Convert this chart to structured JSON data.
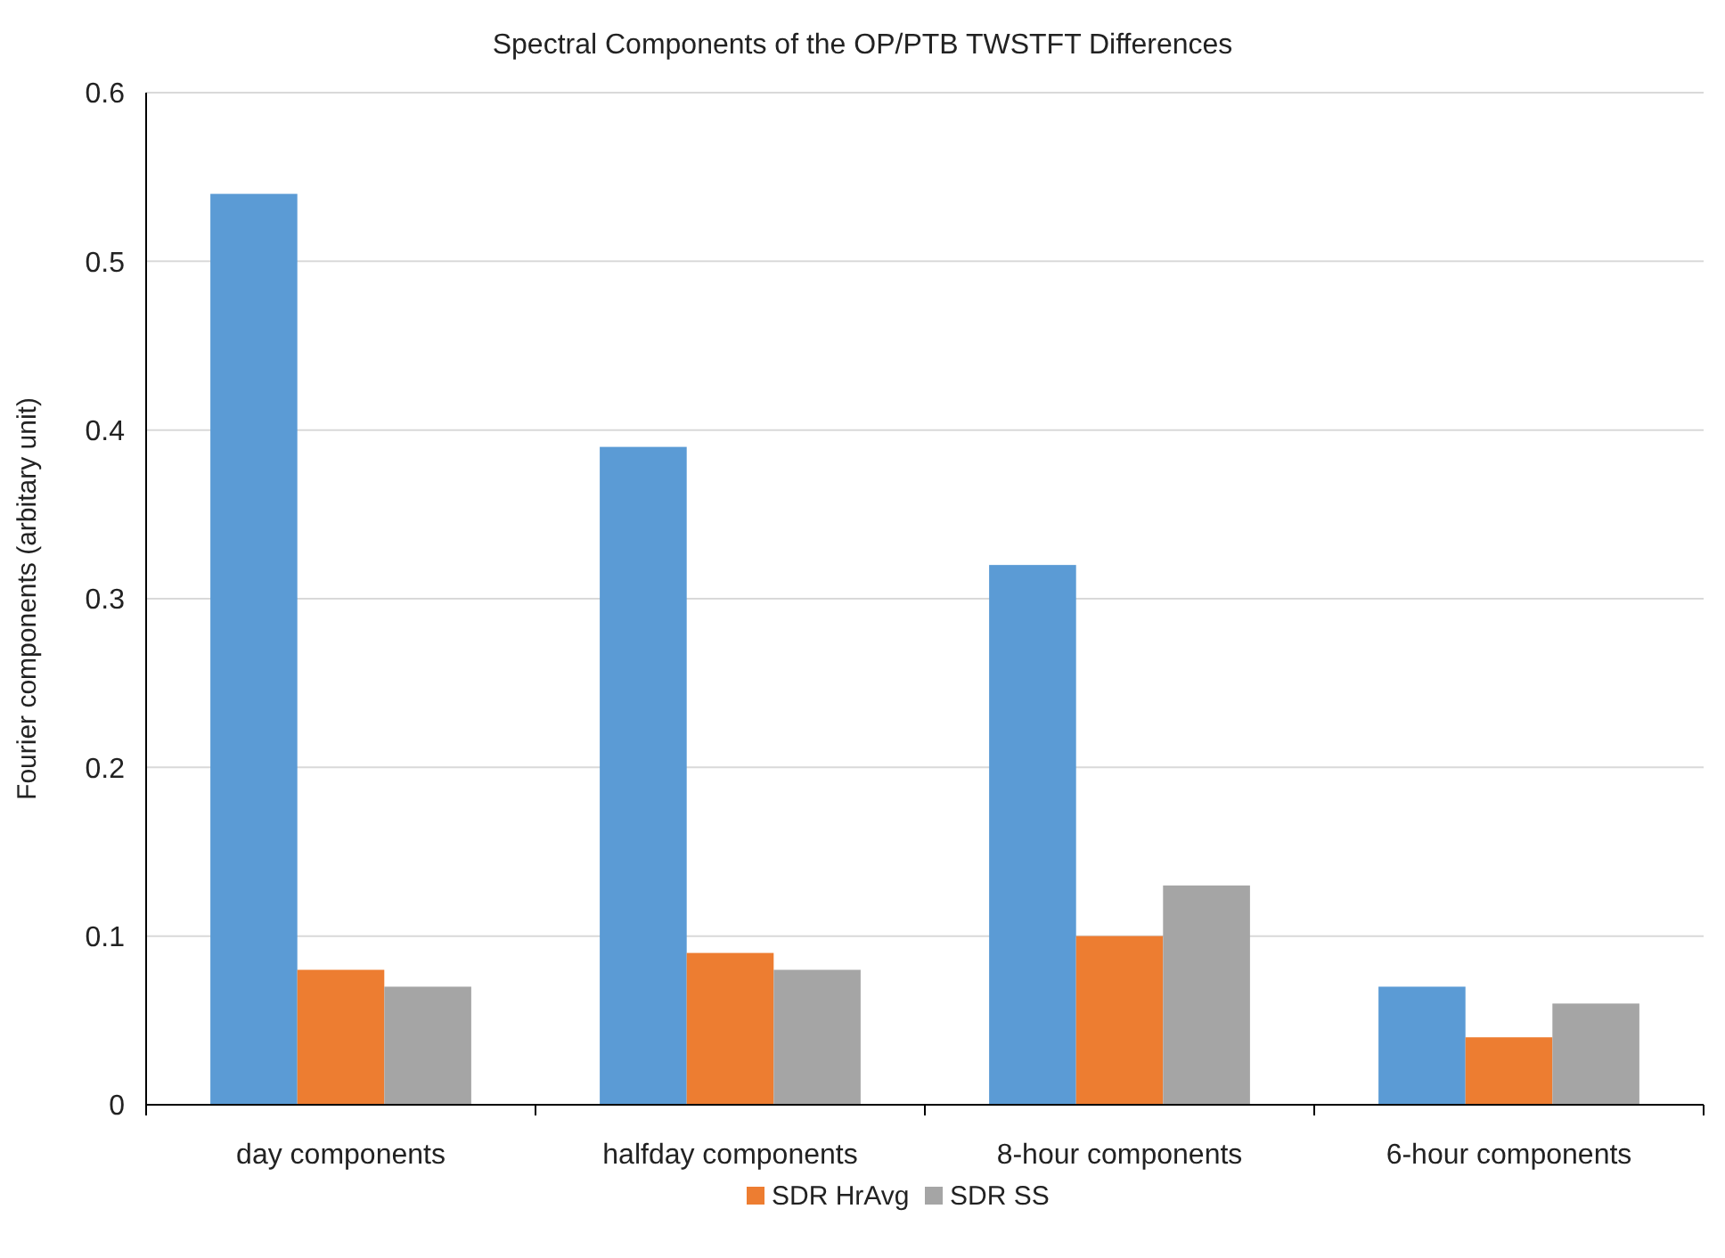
{
  "chart_data": {
    "type": "bar",
    "title": "Spectral Components of the OP/PTB TWSTFT Differences",
    "ylabel": "Fourier components (arbitary unit)",
    "categories": [
      "day components",
      "halfday components",
      "8-hour components",
      "6-hour components"
    ],
    "series": [
      {
        "color": "#5b9bd5",
        "values": [
          0.54,
          0.39,
          0.32,
          0.07
        ]
      },
      {
        "name": "SDR HrAvg",
        "color": "#ed7d31",
        "values": [
          0.08,
          0.09,
          0.1,
          0.04
        ]
      },
      {
        "name": "SDR SS",
        "color": "#a5a5a5",
        "values": [
          0.07,
          0.08,
          0.13,
          0.06
        ]
      }
    ],
    "ylim": [
      0,
      0.6
    ],
    "yticks": [
      0,
      0.1,
      0.2,
      0.3,
      0.4,
      0.5,
      0.6
    ],
    "grid": "y",
    "legend": "bottom"
  }
}
